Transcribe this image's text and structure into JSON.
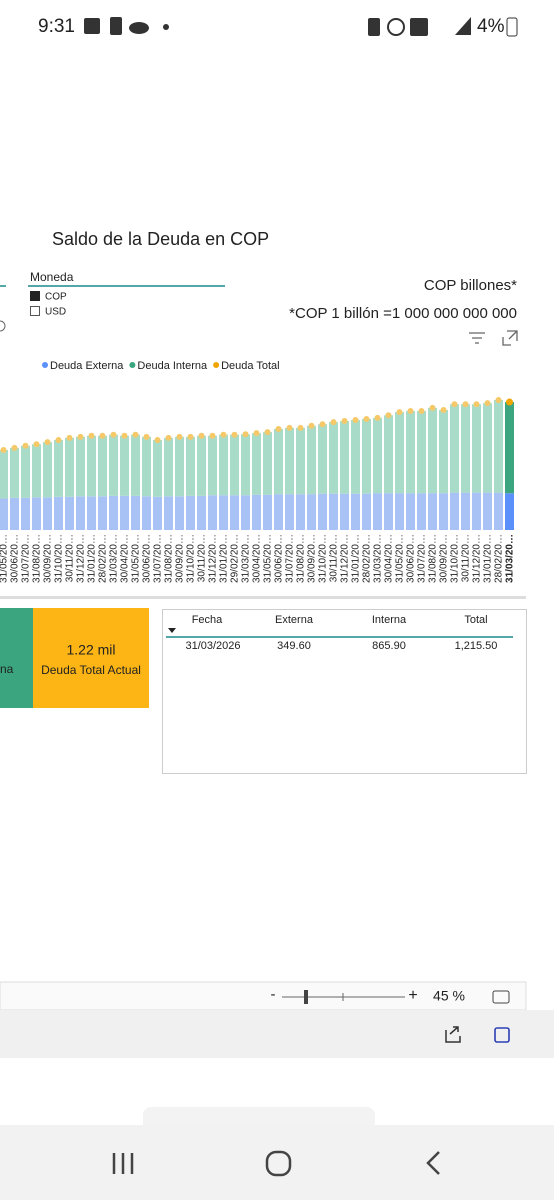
{
  "status_bar": {
    "time": "9:31",
    "battery": "4%"
  },
  "report": {
    "title": "Saldo de la Deuda en COP",
    "slicer": {
      "title": "Moneda",
      "options": [
        "COP",
        "USD"
      ]
    },
    "unit_note": "COP billones*",
    "footnote": "*COP 1 billón =1 000 000 000 000",
    "cards": [
      {
        "label": "na"
      },
      {
        "value": "1.22 mil",
        "label": "Deuda Total Actual"
      }
    ],
    "table": {
      "headers": [
        "Fecha",
        "Externa",
        "Interna",
        "Total"
      ],
      "rows": [
        [
          "31/03/2026",
          "349.60",
          "865.90",
          "1,215.50"
        ]
      ]
    }
  },
  "chart_data": {
    "type": "bar",
    "stacked": true,
    "categories": [
      "31/05/20…",
      "30/06/20…",
      "31/07/20…",
      "31/08/20…",
      "30/09/20…",
      "31/10/20…",
      "30/11/20…",
      "31/12/20…",
      "31/01/20…",
      "28/02/20…",
      "31/03/20…",
      "30/04/20…",
      "31/05/20…",
      "30/06/20…",
      "31/07/20…",
      "31/08/20…",
      "30/09/20…",
      "31/10/20…",
      "30/11/20…",
      "31/12/20…",
      "31/01/20…",
      "29/02/20…",
      "31/03/20…",
      "30/04/20…",
      "31/05/20…",
      "30/06/20…",
      "31/07/20…",
      "31/08/20…",
      "30/09/20…",
      "31/10/20…",
      "30/11/20…",
      "31/12/20…",
      "31/01/20…",
      "28/02/20…",
      "31/03/20…",
      "30/04/20…",
      "31/05/20…",
      "30/06/20…",
      "31/07/20…",
      "31/08/20…",
      "30/09/20…",
      "31/10/20…",
      "30/11/20…",
      "31/12/20…",
      "31/01/20…",
      "28/02/20…",
      "31/03/20…"
    ],
    "series": [
      {
        "name": "Deuda Externa",
        "color": "#a9c2f5",
        "values": [
          300,
          305,
          305,
          310,
          310,
          315,
          315,
          320,
          320,
          320,
          325,
          325,
          325,
          320,
          315,
          320,
          320,
          325,
          325,
          330,
          330,
          330,
          330,
          335,
          335,
          340,
          340,
          340,
          340,
          345,
          345,
          345,
          345,
          345,
          350,
          350,
          350,
          350,
          350,
          350,
          350,
          355,
          355,
          355,
          355,
          355,
          349.6
        ]
      },
      {
        "name": "Deuda Interna",
        "color": "#a8dcc8",
        "values": [
          460,
          475,
          495,
          505,
          525,
          540,
          560,
          565,
          575,
          575,
          580,
          570,
          580,
          565,
          540,
          555,
          565,
          560,
          570,
          565,
          575,
          575,
          580,
          585,
          595,
          620,
          630,
          630,
          650,
          660,
          680,
          690,
          700,
          710,
          715,
          740,
          770,
          780,
          780,
          810,
          790,
          840,
          840,
          840,
          850,
          880,
          865.9
        ]
      },
      {
        "name": "Deuda Total",
        "color": "#f5c96a",
        "mark": "dot",
        "values": [
          760,
          780,
          800,
          815,
          835,
          855,
          875,
          885,
          895,
          895,
          905,
          895,
          905,
          885,
          855,
          875,
          885,
          885,
          895,
          895,
          905,
          905,
          910,
          920,
          930,
          960,
          970,
          970,
          990,
          1005,
          1025,
          1035,
          1045,
          1055,
          1065,
          1090,
          1120,
          1130,
          1130,
          1160,
          1140,
          1195,
          1195,
          1195,
          1205,
          1235,
          1215.5
        ]
      }
    ]
  },
  "zoom": {
    "minus": "-",
    "plus": "+",
    "level": "45 %"
  }
}
